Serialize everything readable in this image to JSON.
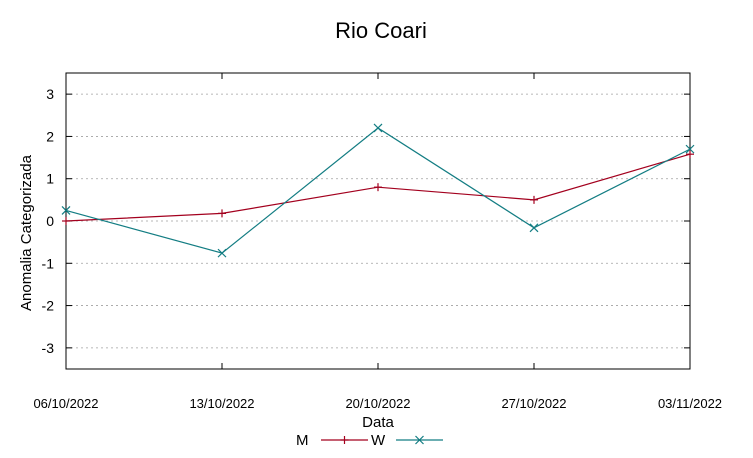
{
  "chart_data": {
    "type": "line",
    "title": "Rio Coari",
    "xlabel": "Data",
    "ylabel": "Anomalia Categorizada",
    "categories": [
      "06/10/2022",
      "13/10/2022",
      "20/10/2022",
      "27/10/2022",
      "03/11/2022"
    ],
    "ylim": [
      -3.5,
      3.5
    ],
    "yticks": [
      "3",
      "2",
      "1",
      "0",
      "-1",
      "-2",
      "-3"
    ],
    "grid": true,
    "legend_position": "bottom",
    "series": [
      {
        "name": "M",
        "values": [
          0.0,
          0.18,
          0.8,
          0.5,
          1.58
        ],
        "color": "#a3001e",
        "marker": "plus"
      },
      {
        "name": "W",
        "values": [
          0.25,
          -0.76,
          2.2,
          -0.16,
          1.7
        ],
        "color": "#137d83",
        "marker": "cross"
      }
    ]
  }
}
